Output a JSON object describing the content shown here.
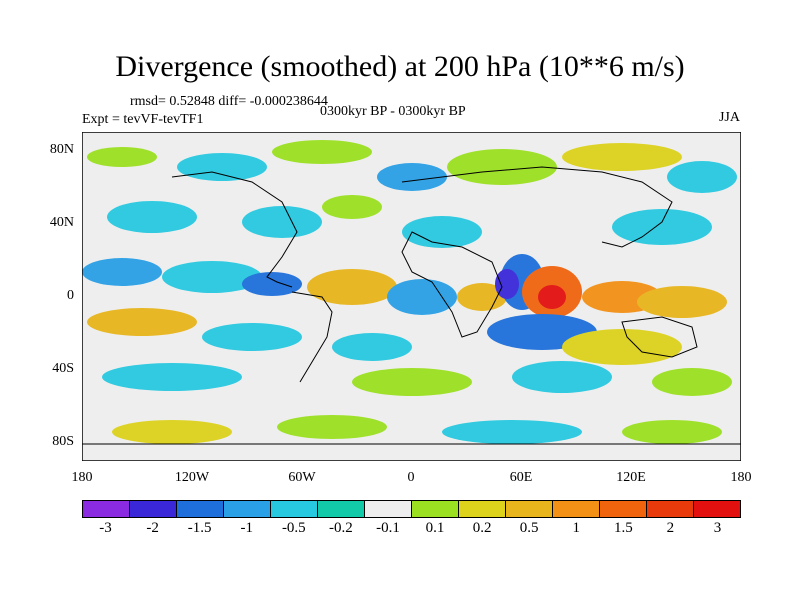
{
  "title": "Divergence (smoothed) at 200 hPa (10**6 m/s)",
  "stats": "rmsd= 0.52848 diff= -0.000238644",
  "experiment": "Expt = tevVF-tevTF1",
  "period": "0300kyr BP - 0300kyr BP",
  "season": "JJA",
  "axes": {
    "lat_ticks": [
      "80N",
      "40N",
      "0",
      "40S",
      "80S"
    ],
    "lon_ticks": [
      "180",
      "120W",
      "60W",
      "0",
      "60E",
      "120E",
      "180"
    ]
  },
  "colorbar": {
    "colors": [
      "#8a2be2",
      "#3a28d8",
      "#1e6fdc",
      "#2aa0e6",
      "#27c9e0",
      "#12c9a8",
      "#eeeeee",
      "#9be021",
      "#ddd21c",
      "#e8b51c",
      "#f39016",
      "#f0640e",
      "#e83a0a",
      "#e31010"
    ],
    "labels": [
      "-3",
      "-2",
      "-1.5",
      "-1",
      "-0.5",
      "-0.2",
      "-0.1",
      "0.1",
      "0.2",
      "0.5",
      "1",
      "1.5",
      "2",
      "3"
    ]
  }
}
